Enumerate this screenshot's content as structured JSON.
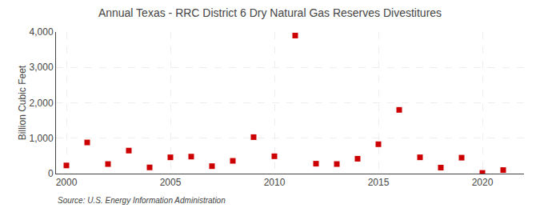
{
  "chart_data": {
    "type": "scatter",
    "title": "Annual Texas - RRC District 6 Dry Natural Gas Reserves Divestitures",
    "ylabel": "Billion Cubic Feet",
    "annotations": [
      "Source: U.S. Energy Information Administration"
    ],
    "x": [
      2000,
      2001,
      2002,
      2003,
      2004,
      2005,
      2006,
      2007,
      2008,
      2009,
      2010,
      2011,
      2012,
      2013,
      2014,
      2015,
      2016,
      2017,
      2018,
      2019,
      2020,
      2021
    ],
    "values": [
      230,
      880,
      270,
      650,
      175,
      460,
      480,
      210,
      360,
      1030,
      490,
      3900,
      280,
      270,
      420,
      830,
      1800,
      460,
      170,
      450,
      20,
      100
    ],
    "color": "#cc0000",
    "marker": "square",
    "xlim": [
      1999.5,
      2022
    ],
    "xticks": [
      2000,
      2005,
      2010,
      2015,
      2020
    ],
    "ylim": [
      0,
      4000
    ],
    "yticks": [
      0,
      {
        "value": 1000,
        "label": "1,000"
      },
      {
        "value": 2000,
        "label": "2,000"
      },
      {
        "value": 3000,
        "label": "3,000"
      },
      {
        "value": 4000,
        "label": "4,000"
      }
    ],
    "grid": true
  }
}
